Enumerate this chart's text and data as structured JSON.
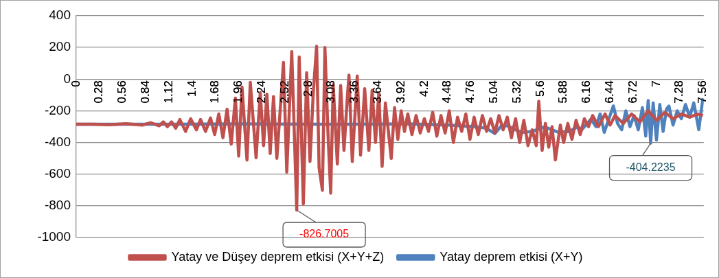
{
  "chart_data": {
    "type": "line",
    "xlim": [
      0,
      7.57
    ],
    "xticks": [
      0,
      0.28,
      0.56,
      0.84,
      1.12,
      1.4,
      1.68,
      1.96,
      2.24,
      2.52,
      2.8,
      3.08,
      3.36,
      3.64,
      3.92,
      4.2,
      4.48,
      4.76,
      5.04,
      5.32,
      5.6,
      5.88,
      6.16,
      6.44,
      6.72,
      7,
      7.28,
      7.56
    ],
    "ylim": [
      -1000,
      400
    ],
    "yticks": [
      -1000,
      -800,
      -600,
      -400,
      -200,
      0,
      200,
      400
    ],
    "grid": "y",
    "legend": "bottom",
    "marker": "none",
    "line_style": "solid",
    "series": [
      {
        "name": "Yatay ve Düşey deprem etkisi (X+Y+Z)",
        "color": "#c0504d",
        "x": [
          0,
          0.2,
          0.4,
          0.6,
          0.8,
          0.9,
          1.0,
          1.05,
          1.1,
          1.15,
          1.2,
          1.25,
          1.32,
          1.38,
          1.45,
          1.5,
          1.56,
          1.62,
          1.67,
          1.72,
          1.77,
          1.82,
          1.87,
          1.92,
          1.96,
          2.0,
          2.06,
          2.1,
          2.17,
          2.22,
          2.26,
          2.3,
          2.34,
          2.38,
          2.42,
          2.46,
          2.5,
          2.54,
          2.6,
          2.66,
          2.69,
          2.74,
          2.78,
          2.82,
          2.86,
          2.9,
          2.93,
          2.97,
          3.0,
          3.04,
          3.07,
          3.1,
          3.15,
          3.19,
          3.23,
          3.27,
          3.29,
          3.33,
          3.39,
          3.43,
          3.48,
          3.53,
          3.57,
          3.61,
          3.65,
          3.69,
          3.73,
          3.8,
          3.84,
          3.88,
          3.92,
          3.96,
          4.0,
          4.05,
          4.1,
          4.15,
          4.2,
          4.25,
          4.3,
          4.35,
          4.4,
          4.45,
          4.5,
          4.55,
          4.6,
          4.65,
          4.7,
          4.75,
          4.8,
          4.85,
          4.9,
          4.95,
          5.0,
          5.05,
          5.1,
          5.15,
          5.2,
          5.25,
          5.3,
          5.35,
          5.4,
          5.45,
          5.5,
          5.55,
          5.58,
          5.62,
          5.66,
          5.7,
          5.74,
          5.78,
          5.84,
          5.88,
          5.93,
          5.98,
          6.03,
          6.08,
          6.13,
          6.18,
          6.23,
          6.3,
          6.38,
          6.44,
          6.5,
          6.6,
          6.7,
          6.8,
          6.9,
          7.0,
          7.1,
          7.2,
          7.3,
          7.4,
          7.5,
          7.56
        ],
        "values": [
          -285,
          -285,
          -288,
          -282,
          -290,
          -275,
          -295,
          -270,
          -300,
          -270,
          -310,
          -255,
          -330,
          -250,
          -320,
          -255,
          -330,
          -245,
          -350,
          -220,
          -370,
          -190,
          -410,
          -120,
          -486,
          -50,
          -511,
          -20,
          -496,
          -85,
          -420,
          -95,
          -470,
          -110,
          -500,
          -200,
          105,
          -587,
          174,
          -826.7005,
          140,
          -787,
          40,
          -520,
          -80,
          207,
          -560,
          -702,
          199,
          -380,
          -720,
          -35,
          -536,
          -40,
          -450,
          -120,
          25,
          -520,
          20,
          -480,
          -60,
          -450,
          -70,
          -400,
          -90,
          -551,
          -150,
          -501,
          -180,
          -380,
          -200,
          -330,
          -220,
          -350,
          -230,
          -340,
          -250,
          -330,
          -210,
          -360,
          -230,
          -340,
          -200,
          -400,
          -240,
          -330,
          -220,
          -380,
          -240,
          -350,
          -230,
          -330,
          -250,
          -340,
          -230,
          -320,
          -240,
          -370,
          -250,
          -400,
          -260,
          -420,
          -320,
          -420,
          -140,
          -450,
          -280,
          -430,
          -300,
          -510,
          -290,
          -400,
          -280,
          -380,
          -260,
          -350,
          -250,
          -300,
          -230,
          -300,
          -220,
          -290,
          -230,
          -280,
          -220,
          -270,
          -200,
          -260,
          -210,
          -250,
          -220,
          -240,
          -220,
          -230
        ]
      },
      {
        "name": "Yatay deprem etkisi (X+Y)",
        "color": "#4f81bd",
        "x": [
          0,
          1,
          2,
          3,
          4,
          4.5,
          4.8,
          4.95,
          5.05,
          5.12,
          5.2,
          5.3,
          5.38,
          5.5,
          5.65,
          5.82,
          5.95,
          6.05,
          6.1,
          6.21,
          6.27,
          6.32,
          6.37,
          6.42,
          6.48,
          6.53,
          6.58,
          6.63,
          6.68,
          6.73,
          6.78,
          6.83,
          6.87,
          6.9,
          6.93,
          6.96,
          7.0,
          7.04,
          7.08,
          7.12,
          7.15,
          7.2,
          7.25,
          7.3,
          7.35,
          7.4,
          7.45,
          7.51,
          7.56
        ],
        "values": [
          -285,
          -285,
          -283,
          -285,
          -283,
          -290,
          -300,
          -310,
          -344,
          -300,
          -294,
          -320,
          -336,
          -330,
          -302,
          -336,
          -330,
          -300,
          -319,
          -252,
          -300,
          -220,
          -336,
          -260,
          -169,
          -280,
          -320,
          -200,
          -300,
          -230,
          -320,
          -180,
          -360,
          -135,
          -404.2235,
          -150,
          -385,
          -160,
          -330,
          -190,
          -170,
          -290,
          -200,
          -250,
          -160,
          -240,
          -150,
          -319,
          -120
        ]
      }
    ],
    "annotations": [
      {
        "text": "-826.7005",
        "x": 2.66,
        "y": -826.7005
      },
      {
        "text": "-404.2235",
        "x": 6.93,
        "y": -404.2235
      }
    ]
  }
}
